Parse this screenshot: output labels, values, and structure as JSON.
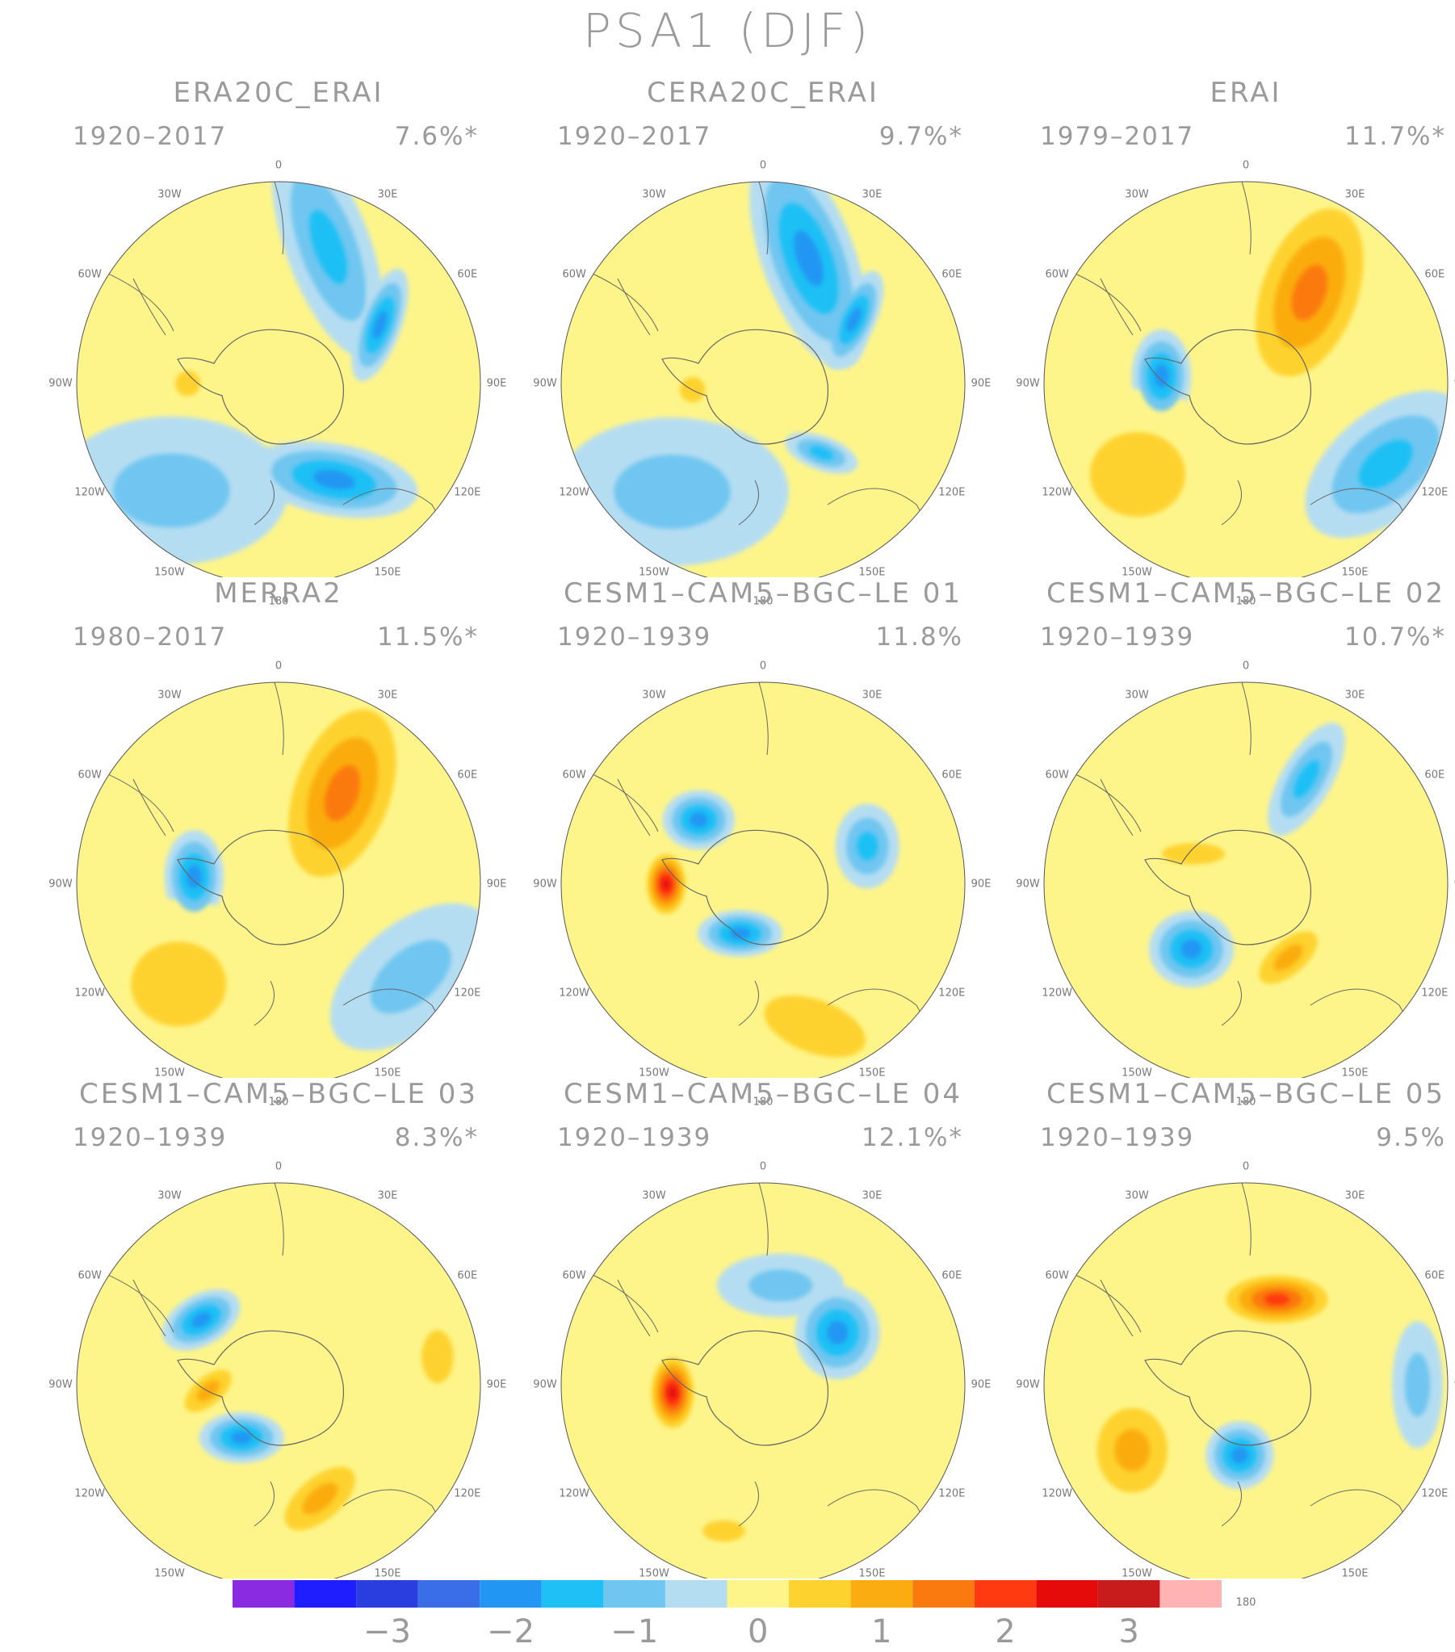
{
  "figure_title": "PSA1 (DJF)",
  "lon_labels": [
    "0",
    "30E",
    "60E",
    "90E",
    "120E",
    "150E",
    "180",
    "150W",
    "120W",
    "90W",
    "60W",
    "30W"
  ],
  "panels": [
    {
      "title": "ERA20C_ERAI",
      "period": "1920–2017",
      "variance": "7.6%*",
      "blobs": [
        {
          "lon": 20,
          "r": 0.72,
          "sx": 0.55,
          "sy": 0.2,
          "rot": 70,
          "level": -1.5
        },
        {
          "lon": 60,
          "r": 0.58,
          "sx": 0.28,
          "sy": 0.1,
          "rot": 110,
          "level": -2.0
        },
        {
          "lon": 150,
          "r": 0.55,
          "sx": 0.4,
          "sy": 0.17,
          "rot": 10,
          "level": -2.0
        },
        {
          "lon": 270,
          "r": 0.45,
          "sx": 0.12,
          "sy": 0.12,
          "rot": 0,
          "level": 0.6
        },
        {
          "lon": 225,
          "r": 0.75,
          "sx": 0.55,
          "sy": 0.35,
          "rot": 0,
          "level": -1.0
        }
      ]
    },
    {
      "title": "CERA20C_ERAI",
      "period": "1920–2017",
      "variance": "9.7%*",
      "blobs": [
        {
          "lon": 20,
          "r": 0.66,
          "sx": 0.55,
          "sy": 0.22,
          "rot": 70,
          "level": -1.7
        },
        {
          "lon": 55,
          "r": 0.55,
          "sx": 0.25,
          "sy": 0.1,
          "rot": 115,
          "level": -2.0
        },
        {
          "lon": 140,
          "r": 0.45,
          "sx": 0.18,
          "sy": 0.08,
          "rot": 20,
          "level": -1.3
        },
        {
          "lon": 265,
          "r": 0.35,
          "sx": 0.12,
          "sy": 0.12,
          "rot": 0,
          "level": 0.7
        },
        {
          "lon": 220,
          "r": 0.7,
          "sx": 0.55,
          "sy": 0.35,
          "rot": 0,
          "level": -1.0
        }
      ]
    },
    {
      "title": "ERAI",
      "period": "1979–2017",
      "variance": "11.7%*",
      "blobs": [
        {
          "lon": 35,
          "r": 0.55,
          "sx": 0.55,
          "sy": 0.3,
          "rot": 110,
          "level": 1.6
        },
        {
          "lon": 275,
          "r": 0.42,
          "sx": 0.14,
          "sy": 0.22,
          "rot": 0,
          "level": -2.0
        },
        {
          "lon": 120,
          "r": 0.8,
          "sx": 0.45,
          "sy": 0.25,
          "rot": 140,
          "level": -1.1
        },
        {
          "lon": 230,
          "r": 0.7,
          "sx": 0.45,
          "sy": 0.4,
          "rot": 0,
          "level": 1.0
        }
      ]
    },
    {
      "title": "MERRA2",
      "period": "1980–2017",
      "variance": "11.5%*",
      "blobs": [
        {
          "lon": 35,
          "r": 0.55,
          "sx": 0.55,
          "sy": 0.3,
          "rot": 110,
          "level": 1.6
        },
        {
          "lon": 275,
          "r": 0.42,
          "sx": 0.14,
          "sy": 0.22,
          "rot": 0,
          "level": -1.9
        },
        {
          "lon": 125,
          "r": 0.8,
          "sx": 0.45,
          "sy": 0.25,
          "rot": 140,
          "level": -1.0
        },
        {
          "lon": 225,
          "r": 0.7,
          "sx": 0.45,
          "sy": 0.4,
          "rot": 0,
          "level": 1.0
        }
      ]
    },
    {
      "title": "CESM1–CAM5–BGC–LE 01",
      "period": "1920–1939",
      "variance": "11.8%",
      "blobs": [
        {
          "lon": 315,
          "r": 0.45,
          "sx": 0.17,
          "sy": 0.14,
          "rot": 0,
          "level": -1.7
        },
        {
          "lon": 70,
          "r": 0.55,
          "sx": 0.15,
          "sy": 0.2,
          "rot": 0,
          "level": -1.2
        },
        {
          "lon": 270,
          "r": 0.48,
          "sx": 0.11,
          "sy": 0.17,
          "rot": 0,
          "level": 2.8
        },
        {
          "lon": 205,
          "r": 0.27,
          "sx": 0.2,
          "sy": 0.11,
          "rot": 0,
          "level": -1.8
        },
        {
          "lon": 160,
          "r": 0.75,
          "sx": 0.5,
          "sy": 0.25,
          "rot": 20,
          "level": 1.0
        }
      ]
    },
    {
      "title": "CESM1–CAM5–BGC–LE 02",
      "period": "1920–1939",
      "variance": "10.7%*",
      "blobs": [
        {
          "lon": 30,
          "r": 0.6,
          "sx": 0.3,
          "sy": 0.12,
          "rot": 120,
          "level": -1.4
        },
        {
          "lon": 220,
          "r": 0.42,
          "sx": 0.2,
          "sy": 0.18,
          "rot": 0,
          "level": -2.0
        },
        {
          "lon": 150,
          "r": 0.42,
          "sx": 0.25,
          "sy": 0.12,
          "rot": 140,
          "level": 1.4
        },
        {
          "lon": 300,
          "r": 0.3,
          "sx": 0.3,
          "sy": 0.1,
          "rot": 0,
          "level": 1.0
        }
      ]
    },
    {
      "title": "CESM1–CAM5–BGC–LE 03",
      "period": "1920–1939",
      "variance": "8.3%*",
      "blobs": [
        {
          "lon": 310,
          "r": 0.5,
          "sx": 0.2,
          "sy": 0.12,
          "rot": 150,
          "level": -1.7
        },
        {
          "lon": 215,
          "r": 0.32,
          "sx": 0.2,
          "sy": 0.12,
          "rot": 0,
          "level": -1.8
        },
        {
          "lon": 160,
          "r": 0.6,
          "sx": 0.3,
          "sy": 0.15,
          "rot": 140,
          "level": 1.5
        },
        {
          "lon": 265,
          "r": 0.35,
          "sx": 0.2,
          "sy": 0.1,
          "rot": 140,
          "level": 1.2
        },
        {
          "lon": 80,
          "r": 0.8,
          "sx": 0.15,
          "sy": 0.25,
          "rot": 0,
          "level": 1.0
        }
      ]
    },
    {
      "title": "CESM1–CAM5–BGC–LE 04",
      "period": "1920–1939",
      "variance": "12.1%*",
      "blobs": [
        {
          "lon": 265,
          "r": 0.45,
          "sx": 0.12,
          "sy": 0.2,
          "rot": 0,
          "level": 2.9
        },
        {
          "lon": 55,
          "r": 0.45,
          "sx": 0.2,
          "sy": 0.22,
          "rot": 0,
          "level": -1.8
        },
        {
          "lon": 10,
          "r": 0.5,
          "sx": 0.3,
          "sy": 0.15,
          "rot": 0,
          "level": -1.0
        },
        {
          "lon": 195,
          "r": 0.75,
          "sx": 0.2,
          "sy": 0.1,
          "rot": 0,
          "level": 1.0
        }
      ]
    },
    {
      "title": "CESM1–CAM5–BGC–LE 05",
      "period": "1920–1939",
      "variance": "9.5%",
      "blobs": [
        {
          "lon": 20,
          "r": 0.45,
          "sx": 0.3,
          "sy": 0.14,
          "rot": 0,
          "level": 2.5
        },
        {
          "lon": 185,
          "r": 0.35,
          "sx": 0.16,
          "sy": 0.16,
          "rot": 0,
          "level": -1.8
        },
        {
          "lon": 240,
          "r": 0.65,
          "sx": 0.25,
          "sy": 0.3,
          "rot": 0,
          "level": 1.3
        },
        {
          "lon": 90,
          "r": 0.85,
          "sx": 0.12,
          "sy": 0.3,
          "rot": 0,
          "level": -1.0
        }
      ]
    }
  ],
  "colorbar": {
    "colors": [
      "#8a2be2",
      "#1e1eff",
      "#2a3ee0",
      "#3a6de8",
      "#2196f3",
      "#1ec0f5",
      "#6fc6f0",
      "#b5ddf2",
      "#fef58a",
      "#fed22e",
      "#fbac10",
      "#fb7a10",
      "#ff3a10",
      "#e50b0b",
      "#c81b1b",
      "#ffb3b3"
    ],
    "tick_labels": [
      "−3",
      "−2",
      "−1",
      "0",
      "1",
      "2",
      "3"
    ]
  }
}
